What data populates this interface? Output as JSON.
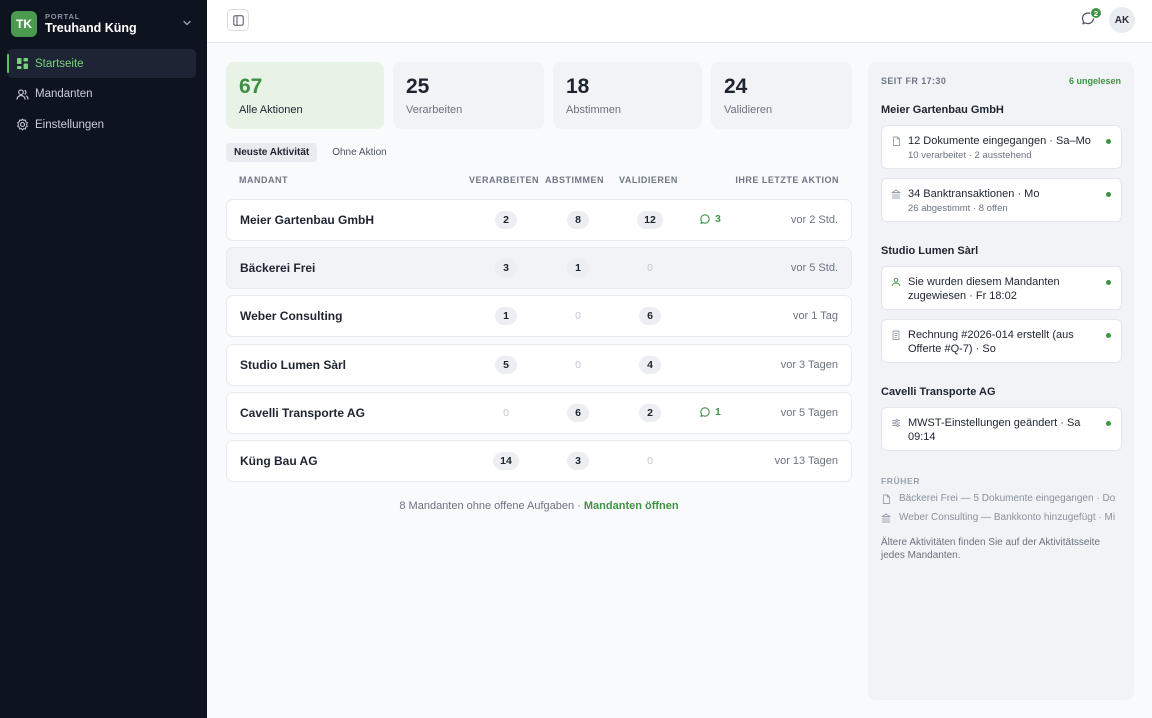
{
  "brand": {
    "initials": "TK",
    "portal_label": "PORTAL",
    "name": "Treuhand Küng"
  },
  "sidebar": {
    "items": [
      {
        "label": "Startseite",
        "icon": "dashboard-icon",
        "active": true
      },
      {
        "label": "Mandanten",
        "icon": "users-icon",
        "active": false
      },
      {
        "label": "Einstellungen",
        "icon": "gear-icon",
        "active": false
      }
    ]
  },
  "header": {
    "notification_count": "2",
    "avatar_initials": "AK"
  },
  "stats": [
    {
      "value": "67",
      "label": "Alle Aktionen"
    },
    {
      "value": "25",
      "label": "Verarbeiten"
    },
    {
      "value": "18",
      "label": "Abstimmen"
    },
    {
      "value": "24",
      "label": "Validieren"
    }
  ],
  "tabs": [
    {
      "label": "Neuste Aktivität",
      "active": true
    },
    {
      "label": "Ohne Aktion",
      "active": false
    }
  ],
  "table": {
    "columns": {
      "mandant": "MANDANT",
      "verarbeiten": "VERARBEITEN",
      "abstimmen": "ABSTIMMEN",
      "validieren": "VALIDIEREN",
      "last": "IHRE LETZTE AKTION"
    },
    "rows": [
      {
        "name": "Meier Gartenbau GmbH",
        "verarbeiten": "2",
        "abstimmen": "8",
        "validieren": "12",
        "comments": "3",
        "last": "vor 2 Std."
      },
      {
        "name": "Bäckerei Frei",
        "verarbeiten": "3",
        "abstimmen": "1",
        "validieren": "0",
        "comments": "",
        "last": "vor 5 Std."
      },
      {
        "name": "Weber Consulting",
        "verarbeiten": "1",
        "abstimmen": "0",
        "validieren": "6",
        "comments": "",
        "last": "vor 1 Tag"
      },
      {
        "name": "Studio Lumen Sàrl",
        "verarbeiten": "5",
        "abstimmen": "0",
        "validieren": "4",
        "comments": "",
        "last": "vor 3 Tagen"
      },
      {
        "name": "Cavelli Transporte AG",
        "verarbeiten": "0",
        "abstimmen": "6",
        "validieren": "2",
        "comments": "1",
        "last": "vor 5 Tagen"
      },
      {
        "name": "Küng Bau AG",
        "verarbeiten": "14",
        "abstimmen": "3",
        "validieren": "0",
        "comments": "",
        "last": "vor 13 Tagen"
      }
    ]
  },
  "footer": {
    "text": "8 Mandanten ohne offene Aufgaben ·",
    "link": "Mandanten öffnen"
  },
  "panel": {
    "since": "SEIT FR 17:30",
    "unread": "6 ungelesen",
    "groups": [
      {
        "title": "Meier Gartenbau GmbH",
        "cards": [
          {
            "icon": "document-icon",
            "title": "12 Dokumente eingegangen · Sa–Mo",
            "sub": "10 verarbeitet · 2 ausstehend"
          },
          {
            "icon": "bank-icon",
            "title": "34 Banktransaktionen · Mo",
            "sub": "26 abgestimmt · 8 offen"
          }
        ]
      },
      {
        "title": "Studio Lumen Sàrl",
        "cards": [
          {
            "icon": "user-assign-icon",
            "title": "Sie wurden diesem Mandanten zugewiesen · Fr 18:02",
            "sub": ""
          },
          {
            "icon": "invoice-icon",
            "title": "Rechnung #2026-014 erstellt (aus Offerte #Q-7) · So",
            "sub": ""
          }
        ]
      },
      {
        "title": "Cavelli Transporte AG",
        "cards": [
          {
            "icon": "sliders-icon",
            "title": "MWST-Einstellungen geändert · Sa 09:14",
            "sub": ""
          }
        ]
      }
    ],
    "earlier_label": "FRÜHER",
    "earlier": [
      {
        "icon": "document-icon",
        "text": "Bäckerei Frei — 5 Dokumente eingegangen · Do"
      },
      {
        "icon": "bank-icon",
        "text": "Weber Consulting — Bankkonto hinzugefügt · Mi"
      }
    ],
    "older_note": "Ältere Aktivitäten finden Sie auf der Aktivitätsseite jedes Mandanten."
  }
}
